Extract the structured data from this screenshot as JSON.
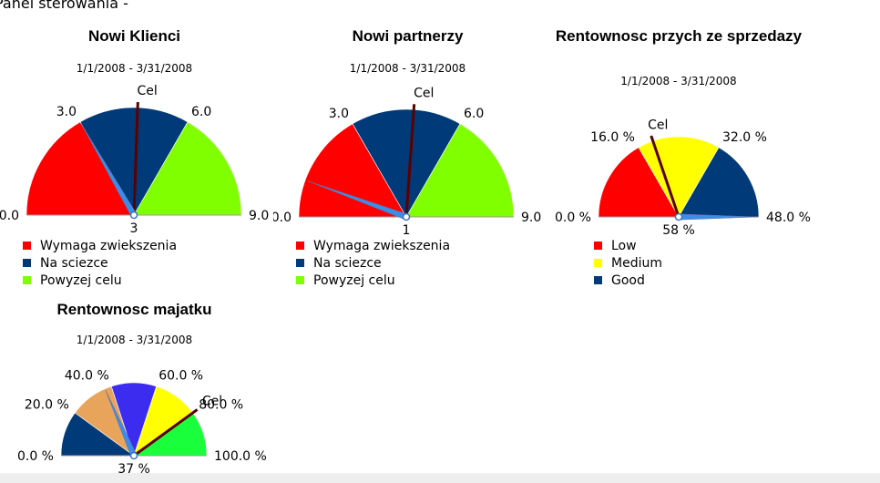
{
  "page": {
    "title": "Panel sterowania -"
  },
  "colors": {
    "red": "#ff0000",
    "navy": "#003a78",
    "lime": "#80ff00",
    "yellow": "#ffff00",
    "orange": "#e8a45a",
    "blue": "#3c2cf0",
    "green": "#1aff3c",
    "needle_actual": "#3a8ee8",
    "needle_target": "#5a0000"
  },
  "gauges": [
    {
      "title": "Nowi Klienci",
      "date_range": "1/1/2008 - 3/31/2008",
      "min": 0,
      "max": 9,
      "bands": [
        {
          "from": 0,
          "to": 3,
          "color": "#ff0000"
        },
        {
          "from": 3,
          "to": 6,
          "color": "#003a78"
        },
        {
          "from": 6,
          "to": 9,
          "color": "#80ff00"
        }
      ],
      "tick_labels": [
        "0.0",
        "3.0",
        "6.0",
        "9.0"
      ],
      "tick_values": [
        0,
        3,
        6,
        9
      ],
      "target_label": "Cel",
      "target_value": 4.6,
      "actual_value": 3,
      "actual_label": "3",
      "legend": [
        {
          "label": "Wymaga zwiekszenia",
          "color": "#ff0000"
        },
        {
          "label": "Na sciezce",
          "color": "#003a78"
        },
        {
          "label": "Powyzej celu",
          "color": "#80ff00"
        }
      ]
    },
    {
      "title": "Nowi partnerzy",
      "date_range": "1/1/2008 - 3/31/2008",
      "min": 0,
      "max": 9,
      "bands": [
        {
          "from": 0,
          "to": 3,
          "color": "#ff0000"
        },
        {
          "from": 3,
          "to": 6,
          "color": "#003a78"
        },
        {
          "from": 6,
          "to": 9,
          "color": "#80ff00"
        }
      ],
      "tick_labels": [
        "0.0",
        "3.0",
        "6.0",
        "9.0"
      ],
      "tick_values": [
        0,
        3,
        6,
        9
      ],
      "target_label": "Cel",
      "target_value": 4.7,
      "actual_value": 1,
      "actual_label": "1",
      "legend": [
        {
          "label": "Wymaga zwiekszenia",
          "color": "#ff0000"
        },
        {
          "label": "Na sciezce",
          "color": "#003a78"
        },
        {
          "label": "Powyzej celu",
          "color": "#80ff00"
        }
      ]
    },
    {
      "title": "Rentownosc przych ze sprzedazy",
      "date_range": "1/1/2008 - 3/31/2008",
      "min": 0,
      "max": 48,
      "bands": [
        {
          "from": 0,
          "to": 16,
          "color": "#ff0000"
        },
        {
          "from": 16,
          "to": 32,
          "color": "#ffff00"
        },
        {
          "from": 32,
          "to": 48,
          "color": "#003a78"
        }
      ],
      "tick_labels": [
        "0.0 %",
        "16.0 %",
        "32.0 %",
        "48.0 %"
      ],
      "tick_values": [
        0,
        16,
        32,
        48
      ],
      "target_label": "Cel",
      "target_value": 19,
      "actual_value": 48,
      "actual_label": "58 %",
      "legend": [
        {
          "label": "Low",
          "color": "#ff0000"
        },
        {
          "label": "Medium",
          "color": "#ffff00"
        },
        {
          "label": "Good",
          "color": "#003a78"
        }
      ]
    },
    {
      "title": "Rentownosc majatku",
      "date_range": "1/1/2008 - 3/31/2008",
      "min": 0,
      "max": 100,
      "bands": [
        {
          "from": 0,
          "to": 20,
          "color": "#003a78"
        },
        {
          "from": 20,
          "to": 40,
          "color": "#e8a45a"
        },
        {
          "from": 40,
          "to": 60,
          "color": "#3c2cf0"
        },
        {
          "from": 60,
          "to": 80,
          "color": "#ffff00"
        },
        {
          "from": 80,
          "to": 100,
          "color": "#1aff3c"
        }
      ],
      "tick_labels": [
        "0.0 %",
        "20.0 %",
        "40.0 %",
        "60.0 %",
        "80.0 %",
        "100.0 %"
      ],
      "tick_values": [
        0,
        20,
        40,
        60,
        80,
        100
      ],
      "target_label": "Cel",
      "target_value": 80,
      "actual_value": 37,
      "actual_label": "37 %",
      "legend": []
    }
  ]
}
